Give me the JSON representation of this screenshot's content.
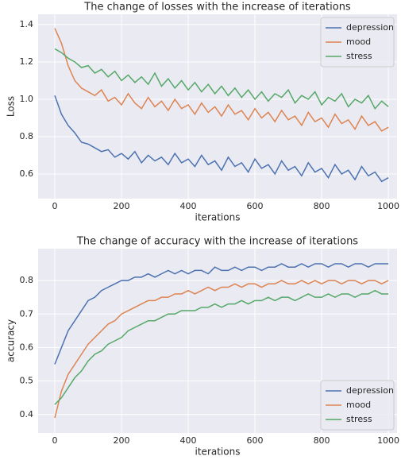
{
  "chart_data": [
    {
      "type": "line",
      "title": "The change of losses with the increase of iterations",
      "xlabel": "iterations",
      "ylabel": "Loss",
      "x": [
        0,
        20,
        40,
        60,
        80,
        100,
        120,
        140,
        160,
        180,
        200,
        220,
        240,
        260,
        280,
        300,
        320,
        340,
        360,
        380,
        400,
        420,
        440,
        460,
        480,
        500,
        520,
        540,
        560,
        580,
        600,
        620,
        640,
        660,
        680,
        700,
        720,
        740,
        760,
        780,
        800,
        820,
        840,
        860,
        880,
        900,
        920,
        940,
        960,
        980,
        1000
      ],
      "xlim": [
        -50,
        1026
      ],
      "ylim": [
        0.468,
        1.455
      ],
      "xticks": [
        0,
        200,
        400,
        600,
        800,
        1000
      ],
      "yticks": [
        0.6,
        0.8,
        {
          "value": 1,
          "label": "1.0"
        },
        1.2,
        1.4
      ],
      "grid": true,
      "legend": "upper right",
      "series": [
        {
          "name": "depression",
          "color": "#4c72b0",
          "values": [
            1.02,
            0.92,
            0.86,
            0.82,
            0.77,
            0.76,
            0.74,
            0.72,
            0.73,
            0.69,
            0.71,
            0.68,
            0.72,
            0.66,
            0.7,
            0.67,
            0.69,
            0.65,
            0.71,
            0.66,
            0.68,
            0.64,
            0.7,
            0.65,
            0.67,
            0.62,
            0.69,
            0.64,
            0.66,
            0.61,
            0.68,
            0.63,
            0.65,
            0.6,
            0.67,
            0.62,
            0.64,
            0.59,
            0.66,
            0.61,
            0.63,
            0.58,
            0.65,
            0.6,
            0.62,
            0.57,
            0.64,
            0.59,
            0.61,
            0.56,
            0.58
          ]
        },
        {
          "name": "mood",
          "color": "#dd8452",
          "values": [
            1.38,
            1.3,
            1.18,
            1.1,
            1.06,
            1.04,
            1.02,
            1.05,
            0.99,
            1.01,
            0.97,
            1.03,
            0.98,
            0.95,
            1.01,
            0.96,
            0.99,
            0.94,
            1.0,
            0.95,
            0.97,
            0.92,
            0.98,
            0.93,
            0.96,
            0.91,
            0.97,
            0.92,
            0.94,
            0.89,
            0.95,
            0.9,
            0.93,
            0.88,
            0.94,
            0.89,
            0.91,
            0.86,
            0.93,
            0.88,
            0.9,
            0.85,
            0.92,
            0.87,
            0.89,
            0.84,
            0.91,
            0.86,
            0.88,
            0.83,
            0.85
          ]
        },
        {
          "name": "stress",
          "color": "#55a868",
          "values": [
            1.27,
            1.25,
            1.22,
            1.2,
            1.17,
            1.18,
            1.14,
            1.16,
            1.12,
            1.15,
            1.1,
            1.13,
            1.09,
            1.12,
            1.08,
            1.14,
            1.07,
            1.11,
            1.06,
            1.1,
            1.05,
            1.09,
            1.04,
            1.08,
            1.03,
            1.07,
            1.02,
            1.06,
            1.01,
            1.05,
            1.0,
            1.04,
            0.99,
            1.03,
            1.01,
            1.05,
            0.98,
            1.02,
            1.0,
            1.04,
            0.97,
            1.01,
            0.99,
            1.03,
            0.96,
            1.0,
            0.98,
            1.02,
            0.95,
            0.99,
            0.96
          ]
        }
      ]
    },
    {
      "type": "line",
      "title": "The change of accuracy with the increase of iterations",
      "xlabel": "iterations",
      "ylabel": "accuracy",
      "x": [
        0,
        20,
        40,
        60,
        80,
        100,
        120,
        140,
        160,
        180,
        200,
        220,
        240,
        260,
        280,
        300,
        320,
        340,
        360,
        380,
        400,
        420,
        440,
        460,
        480,
        500,
        520,
        540,
        560,
        580,
        600,
        620,
        640,
        660,
        680,
        700,
        720,
        740,
        760,
        780,
        800,
        820,
        840,
        860,
        880,
        900,
        920,
        940,
        960,
        980,
        1000
      ],
      "xlim": [
        -50,
        1026
      ],
      "ylim": [
        0.345,
        0.895
      ],
      "xticks": [
        0,
        200,
        400,
        600,
        800,
        1000
      ],
      "yticks": [
        0.4,
        0.5,
        0.6,
        0.7,
        0.8
      ],
      "grid": true,
      "legend": "lower right",
      "series": [
        {
          "name": "depression",
          "color": "#4c72b0",
          "values": [
            0.55,
            0.6,
            0.65,
            0.68,
            0.71,
            0.74,
            0.75,
            0.77,
            0.78,
            0.79,
            0.8,
            0.8,
            0.81,
            0.81,
            0.82,
            0.81,
            0.82,
            0.83,
            0.82,
            0.83,
            0.82,
            0.83,
            0.83,
            0.82,
            0.84,
            0.83,
            0.83,
            0.84,
            0.83,
            0.84,
            0.84,
            0.83,
            0.84,
            0.84,
            0.85,
            0.84,
            0.84,
            0.85,
            0.84,
            0.85,
            0.85,
            0.84,
            0.85,
            0.85,
            0.84,
            0.85,
            0.85,
            0.84,
            0.85,
            0.85,
            0.85
          ]
        },
        {
          "name": "mood",
          "color": "#dd8452",
          "values": [
            0.39,
            0.47,
            0.52,
            0.55,
            0.58,
            0.61,
            0.63,
            0.65,
            0.67,
            0.68,
            0.7,
            0.71,
            0.72,
            0.73,
            0.74,
            0.74,
            0.75,
            0.75,
            0.76,
            0.76,
            0.77,
            0.76,
            0.77,
            0.78,
            0.77,
            0.78,
            0.78,
            0.79,
            0.78,
            0.79,
            0.79,
            0.78,
            0.79,
            0.79,
            0.8,
            0.79,
            0.79,
            0.8,
            0.79,
            0.8,
            0.79,
            0.8,
            0.8,
            0.79,
            0.8,
            0.8,
            0.79,
            0.8,
            0.8,
            0.79,
            0.8
          ]
        },
        {
          "name": "stress",
          "color": "#55a868",
          "values": [
            0.43,
            0.45,
            0.48,
            0.51,
            0.53,
            0.56,
            0.58,
            0.59,
            0.61,
            0.62,
            0.63,
            0.65,
            0.66,
            0.67,
            0.68,
            0.68,
            0.69,
            0.7,
            0.7,
            0.71,
            0.71,
            0.71,
            0.72,
            0.72,
            0.73,
            0.72,
            0.73,
            0.73,
            0.74,
            0.73,
            0.74,
            0.74,
            0.75,
            0.74,
            0.75,
            0.75,
            0.74,
            0.75,
            0.76,
            0.75,
            0.75,
            0.76,
            0.75,
            0.76,
            0.76,
            0.75,
            0.76,
            0.76,
            0.77,
            0.76,
            0.76
          ]
        }
      ]
    }
  ]
}
